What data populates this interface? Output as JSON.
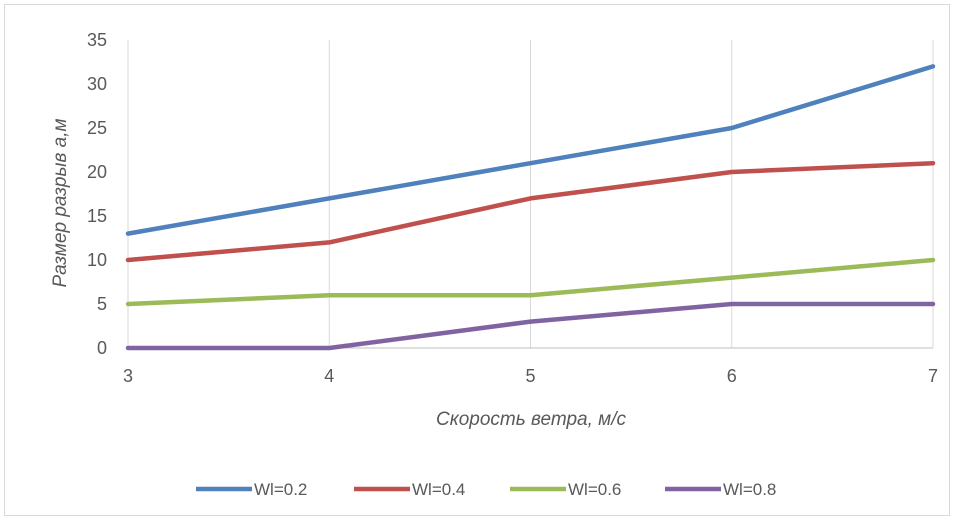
{
  "chart_data": {
    "type": "line",
    "title": "",
    "xlabel": "Скорость ветра, м/с",
    "ylabel": "Размер разрыв а,м",
    "x": [
      3,
      4,
      5,
      6,
      7
    ],
    "xticks": [
      "3",
      "4",
      "5",
      "6",
      "7"
    ],
    "ylim": [
      0,
      35
    ],
    "yticks": [
      "0",
      "5",
      "10",
      "15",
      "20",
      "25",
      "30",
      "35"
    ],
    "grid": "vertical",
    "legend_position": "bottom",
    "series": [
      {
        "name": "Wl=0.2",
        "color": "#4f81bd",
        "values": [
          13,
          17,
          21,
          25,
          32
        ]
      },
      {
        "name": "Wl=0.4",
        "color": "#c0504d",
        "values": [
          10,
          12,
          17,
          20,
          21
        ]
      },
      {
        "name": "Wl=0.6",
        "color": "#9bbb59",
        "values": [
          5,
          6,
          6,
          8,
          10
        ]
      },
      {
        "name": "Wl=0.8",
        "color": "#8064a2",
        "values": [
          0,
          0,
          3,
          5,
          5
        ]
      }
    ]
  }
}
